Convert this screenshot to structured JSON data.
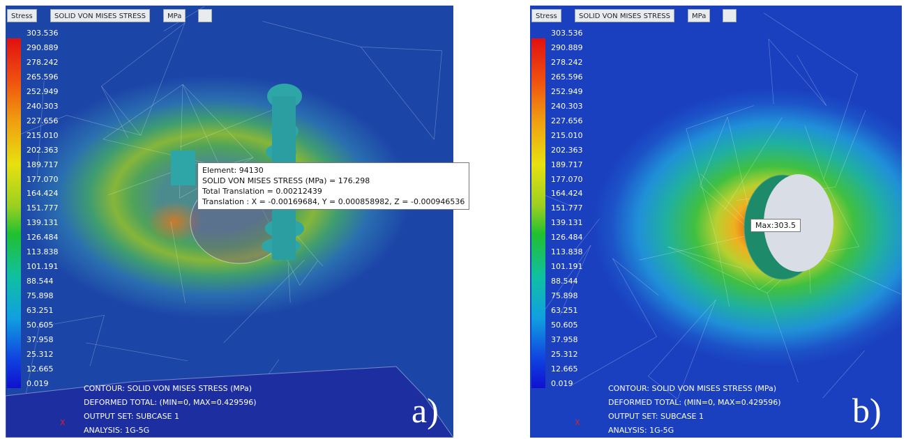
{
  "panels": [
    {
      "toolbar": {
        "result": "Stress",
        "component": "SOLID VON MISES STRESS",
        "unit": "MPa"
      },
      "legend": [
        "303.536",
        "290.889",
        "278.242",
        "265.596",
        "252.949",
        "240.303",
        "227.656",
        "215.010",
        "202.363",
        "189.717",
        "177.070",
        "164.424",
        "151.777",
        "139.131",
        "126.484",
        "113.838",
        "101.191",
        "88.544",
        "75.898",
        "63.251",
        "50.605",
        "37.958",
        "25.312",
        "12.665",
        "0.019"
      ],
      "info": [
        "CONTOUR: SOLID VON MISES STRESS (MPa)",
        "DEFORMED TOTAL: (MIN=0, MAX=0.429596)",
        "OUTPUT SET: SUBCASE 1",
        "ANALYSIS: 1G-5G"
      ],
      "tooltip": [
        "Element: 94130",
        "SOLID VON MISES STRESS (MPa)  = 176.298",
        "Total Translation = 0.00212439",
        "Translation : X = -0.00169684, Y = 0.000858982, Z = -0.000946536"
      ],
      "axis": "X",
      "label": "a)"
    },
    {
      "toolbar": {
        "result": "Stress",
        "component": "SOLID VON MISES STRESS",
        "unit": "MPa"
      },
      "legend": [
        "303.536",
        "290.889",
        "278.242",
        "265.596",
        "252.949",
        "240.303",
        "227.656",
        "215.010",
        "202.363",
        "189.717",
        "177.070",
        "164.424",
        "151.777",
        "139.131",
        "126.484",
        "113.838",
        "101.191",
        "88.544",
        "75.898",
        "63.251",
        "50.605",
        "37.958",
        "25.312",
        "12.665",
        "0.019"
      ],
      "info": [
        "CONTOUR: SOLID VON MISES STRESS (MPa)",
        "DEFORMED TOTAL: (MIN=0, MAX=0.429596)",
        "OUTPUT SET: SUBCASE 1",
        "ANALYSIS: 1G-5G"
      ],
      "max_label": "Max:303.5",
      "axis": "X",
      "label": "b)"
    }
  ]
}
